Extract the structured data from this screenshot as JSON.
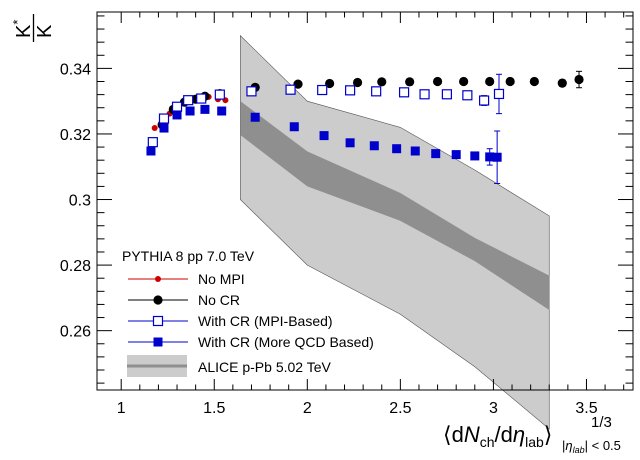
{
  "chart_data": {
    "type": "scatter",
    "xlim": [
      0.87,
      3.75
    ],
    "ylim": [
      0.2419,
      0.3572
    ],
    "x_ticks": [
      1,
      1.5,
      2,
      2.5,
      3,
      3.5
    ],
    "x_tick_labels": [
      "1",
      "1.5",
      "2",
      "2.5",
      "3",
      "3.5"
    ],
    "y_ticks": [
      0.26,
      0.28,
      0.3,
      0.32,
      0.34
    ],
    "y_tick_labels": [
      "0.26",
      "0.28",
      "0.3",
      "0.32",
      "0.34"
    ],
    "ylabel": {
      "num": "K",
      "sup": "*",
      "den": "K"
    },
    "xlabel": {
      "open": "⟨d",
      "n": "N",
      "ch": "ch",
      "slash": "/d",
      "eta": "η",
      "lab": "lab",
      "close": "⟩",
      "pow": "1/3",
      "bar": "|",
      "sub_eta": "η",
      "sub_lab": "lab",
      "sub_rest": "| < 0.5"
    },
    "legend_title": "PYTHIA 8 pp 7.0 TeV",
    "band": {
      "name": "ALICE p-Pb 5.02 TeV",
      "x": [
        1.64,
        2.0,
        2.5,
        2.9,
        3.3
      ],
      "center": [
        0.3246,
        0.3095,
        0.2975,
        0.2848,
        0.2713
      ],
      "sys_lo": [
        0.3,
        0.28,
        0.265,
        0.249,
        0.23
      ],
      "sys_hi": [
        0.35,
        0.33,
        0.322,
        0.309,
        0.295
      ],
      "unc_lo": [
        0.3197,
        0.304,
        0.2935,
        0.2812,
        0.2663
      ],
      "unc_hi": [
        0.33,
        0.3147,
        0.302,
        0.2883,
        0.2768
      ]
    },
    "series": [
      {
        "name": "No MPI",
        "color": "#cc0000",
        "marker": "circle-small",
        "x": [
          1.18,
          1.22,
          1.26,
          1.31,
          1.36,
          1.42,
          1.47,
          1.52,
          1.56
        ],
        "y": [
          0.3218,
          0.3243,
          0.3262,
          0.3282,
          0.3302,
          0.3311,
          0.3313,
          0.3306,
          0.3303
        ]
      },
      {
        "name": "No CR",
        "color": "#000000",
        "marker": "circle",
        "x": [
          1.17,
          1.22,
          1.28,
          1.34,
          1.4,
          1.45,
          1.53,
          1.72,
          1.95,
          2.12,
          2.27,
          2.4,
          2.55,
          2.7,
          2.84,
          2.98,
          3.09,
          3.22,
          3.37,
          3.46
        ],
        "y": [
          0.3175,
          0.3228,
          0.3275,
          0.3297,
          0.3306,
          0.3315,
          0.3323,
          0.3342,
          0.3352,
          0.3354,
          0.3357,
          0.3359,
          0.3359,
          0.336,
          0.336,
          0.336,
          0.336,
          0.336,
          0.3355,
          0.3366
        ],
        "err": [
          0,
          0,
          0,
          0,
          0,
          0,
          0,
          0,
          0,
          0,
          0,
          0,
          0,
          0,
          0,
          0,
          0,
          0,
          0.001,
          0.0025
        ]
      },
      {
        "name": "With CR (MPI-Based)",
        "color": "#0000cc",
        "marker": "open-square",
        "x": [
          1.17,
          1.23,
          1.3,
          1.36,
          1.43,
          1.53,
          1.7,
          1.91,
          2.08,
          2.23,
          2.37,
          2.52,
          2.63,
          2.75,
          2.86,
          2.95,
          3.03
        ],
        "y": [
          0.3175,
          0.3247,
          0.3283,
          0.3303,
          0.3308,
          0.332,
          0.333,
          0.3335,
          0.3334,
          0.3333,
          0.333,
          0.3327,
          0.3321,
          0.3321,
          0.3318,
          0.3302,
          0.3322
        ],
        "err": [
          0,
          0,
          0,
          0,
          0,
          0,
          0,
          0,
          0,
          0,
          0,
          0,
          0,
          0,
          0,
          0.0015,
          0.006
        ]
      },
      {
        "name": "With CR (More QCD Based)",
        "color": "#0000cc",
        "marker": "filled-square",
        "x": [
          1.16,
          1.23,
          1.3,
          1.37,
          1.45,
          1.54,
          1.72,
          1.93,
          2.09,
          2.23,
          2.36,
          2.48,
          2.58,
          2.69,
          2.8,
          2.9,
          2.98,
          3.02
        ],
        "y": [
          0.3148,
          0.3218,
          0.3258,
          0.327,
          0.3275,
          0.327,
          0.3251,
          0.3222,
          0.3195,
          0.3173,
          0.3164,
          0.3155,
          0.3148,
          0.314,
          0.3137,
          0.3133,
          0.313,
          0.3129
        ],
        "err": [
          0,
          0,
          0,
          0,
          0,
          0,
          0,
          0,
          0,
          0,
          0,
          0,
          0,
          0,
          0,
          0,
          0.0025,
          0.008
        ]
      }
    ]
  }
}
